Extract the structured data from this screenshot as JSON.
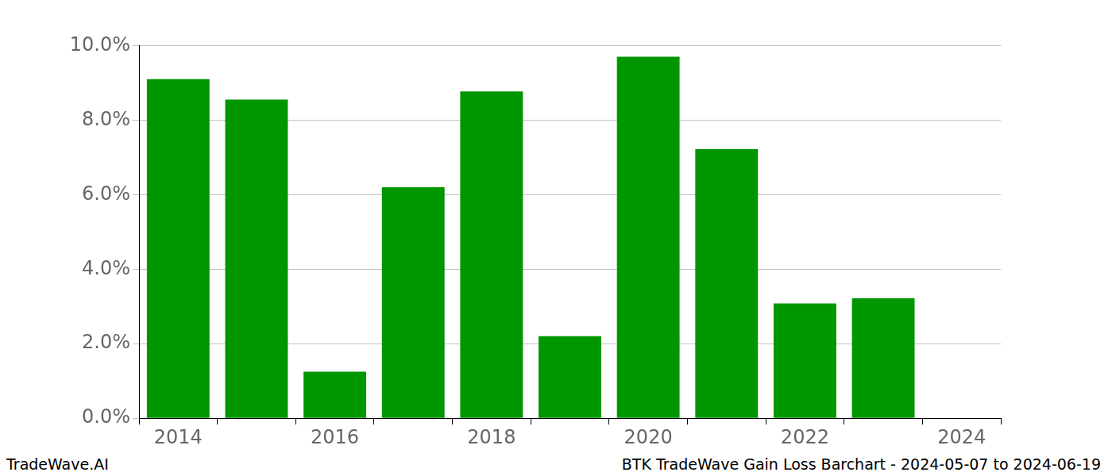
{
  "chart_data": {
    "type": "bar",
    "categories": [
      "2014",
      null,
      "2016",
      null,
      "2018",
      null,
      "2020",
      null,
      "2022",
      null,
      "2024"
    ],
    "values": [
      9.1,
      8.55,
      1.25,
      6.2,
      8.77,
      2.2,
      9.7,
      7.22,
      3.08,
      3.22,
      null
    ],
    "color": "#009600",
    "ylim": [
      0,
      10
    ],
    "yticks": [
      {
        "value": 0,
        "label": "0.0%"
      },
      {
        "value": 2,
        "label": "2.0%"
      },
      {
        "value": 4,
        "label": "4.0%"
      },
      {
        "value": 6,
        "label": "6.0%"
      },
      {
        "value": 8,
        "label": "8.0%"
      },
      {
        "value": 10,
        "label": "10.0%"
      }
    ],
    "grid": true,
    "annotations": [
      "TradeWave.AI",
      "BTK TradeWave Gain Loss Barchart - 2024-05-07 to 2024-06-19"
    ]
  }
}
